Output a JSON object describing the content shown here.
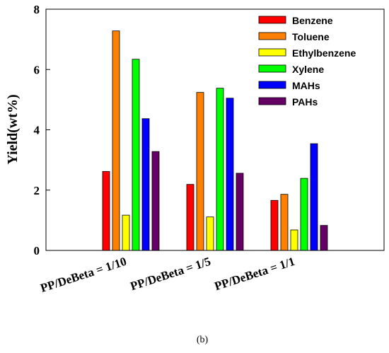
{
  "chart_data": {
    "type": "bar",
    "categories": [
      "PP/DeBeta = 1/10",
      "PP/DeBeta = 1/5",
      "PP/DeBeta = 1/1"
    ],
    "series": [
      {
        "name": "Benzene",
        "color": "#ff0000",
        "values": [
          2.62,
          2.19,
          1.66
        ]
      },
      {
        "name": "Toluene",
        "color": "#ff8000",
        "values": [
          7.28,
          5.24,
          1.86
        ]
      },
      {
        "name": "Ethylbenzene",
        "color": "#ffff00",
        "values": [
          1.17,
          1.11,
          0.68
        ]
      },
      {
        "name": "Xylene",
        "color": "#00ff00",
        "values": [
          6.34,
          5.38,
          2.39
        ]
      },
      {
        "name": "MAHs",
        "color": "#0000ff",
        "values": [
          4.37,
          5.05,
          3.54
        ]
      },
      {
        "name": "PAHs",
        "color": "#660066",
        "values": [
          3.28,
          2.56,
          0.83
        ]
      }
    ],
    "title": "",
    "xlabel": "",
    "ylabel": "Yield(wt%)",
    "ylim": [
      0,
      8
    ],
    "yticks": [
      "0",
      "2",
      "4",
      "6",
      "8"
    ],
    "grid": false,
    "legend_position": "top-right",
    "caption": "(b)"
  }
}
